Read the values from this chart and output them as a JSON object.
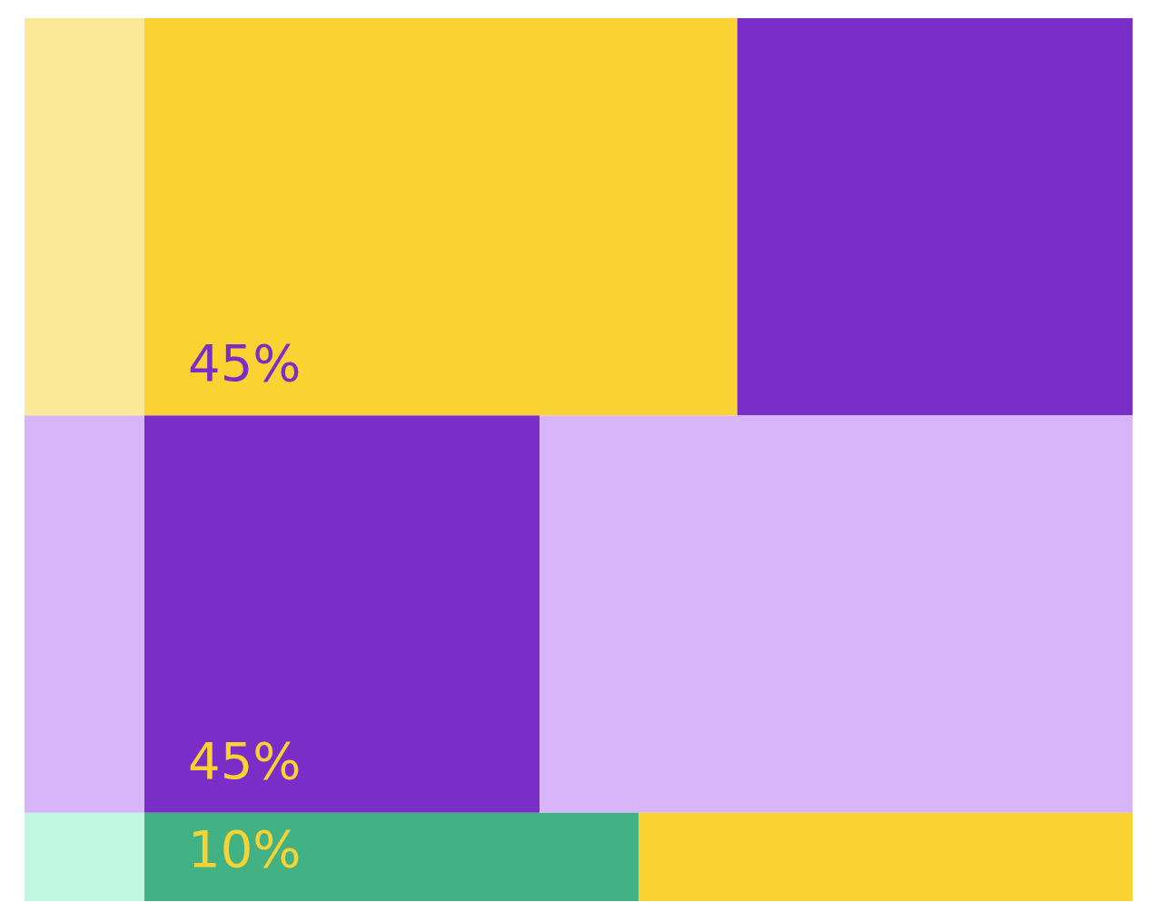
{
  "chart_data": {
    "type": "other",
    "categories": [
      null,
      null,
      null
    ],
    "values": [
      45,
      45,
      10
    ],
    "value_labels": [
      "45%",
      "45%",
      "10%"
    ],
    "colors": [
      "#fad232",
      "#7a2ec7",
      "#42b284"
    ]
  }
}
